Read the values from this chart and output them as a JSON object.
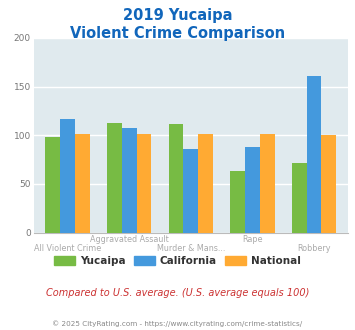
{
  "title_line1": "2019 Yucaipa",
  "title_line2": "Violent Crime Comparison",
  "categories": [
    "All Violent Crime",
    "Aggravated Assault",
    "Murder & Mans...",
    "Rape",
    "Robbery"
  ],
  "yucaipa": [
    98,
    113,
    112,
    63,
    72
  ],
  "california": [
    117,
    107,
    86,
    88,
    161
  ],
  "national": [
    101,
    101,
    101,
    101,
    100
  ],
  "color_yucaipa": "#77bb44",
  "color_california": "#4499dd",
  "color_national": "#ffaa33",
  "color_title": "#1166bb",
  "color_bg_chart": "#e0eaee",
  "color_bg_fig": "#ffffff",
  "color_note": "#cc3333",
  "color_footer": "#888888",
  "color_xlabel": "#aaaaaa",
  "ylim": [
    0,
    200
  ],
  "yticks": [
    0,
    50,
    100,
    150,
    200
  ],
  "row1_labels": [
    "",
    "Aggravated Assault",
    "",
    "Rape",
    ""
  ],
  "row2_labels": [
    "All Violent Crime",
    "",
    "Murder & Mans...",
    "",
    "Robbery"
  ],
  "note_text": "Compared to U.S. average. (U.S. average equals 100)",
  "footer_text": "© 2025 CityRating.com - https://www.cityrating.com/crime-statistics/",
  "legend_labels": [
    "Yucaipa",
    "California",
    "National"
  ]
}
